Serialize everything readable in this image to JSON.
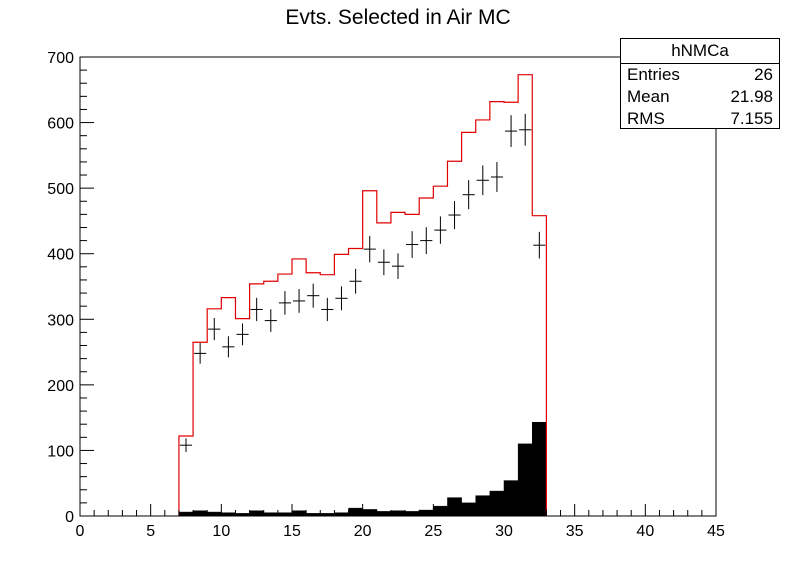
{
  "chart_data": {
    "type": "histogram",
    "title": "Evts. Selected in Air MC",
    "xlim": [
      0,
      45
    ],
    "ylim": [
      0,
      700
    ],
    "x_ticks": [
      0,
      5,
      10,
      15,
      20,
      25,
      30,
      35,
      40,
      45
    ],
    "y_ticks": [
      0,
      100,
      200,
      300,
      400,
      500,
      600,
      700
    ],
    "bin_width": 1,
    "bin_low_edges": [
      7,
      8,
      9,
      10,
      11,
      12,
      13,
      14,
      15,
      16,
      17,
      18,
      19,
      20,
      21,
      22,
      23,
      24,
      25,
      26,
      27,
      28,
      29,
      30,
      31,
      32
    ],
    "series": [
      {
        "style": "red-line-histogram",
        "values": [
          122,
          265,
          316,
          333,
          301,
          354,
          358,
          369,
          392,
          371,
          368,
          399,
          408,
          496,
          447,
          463,
          460,
          485,
          503,
          541,
          585,
          604,
          632,
          631,
          673,
          458
        ]
      },
      {
        "style": "black-markers-with-errors",
        "values": [
          108,
          248,
          285,
          258,
          277,
          315,
          298,
          325,
          328,
          336,
          315,
          332,
          358,
          407,
          387,
          381,
          414,
          420,
          436,
          459,
          490,
          512,
          517,
          587,
          589,
          413
        ]
      },
      {
        "style": "black-filled-histogram",
        "values": [
          6,
          8,
          6,
          5,
          4,
          8,
          5,
          5,
          8,
          4,
          4,
          5,
          12,
          10,
          7,
          8,
          7,
          9,
          15,
          28,
          20,
          31,
          38,
          54,
          110,
          143
        ]
      }
    ],
    "stats_box": {
      "name": "hNMCa",
      "rows": [
        {
          "label": "Entries",
          "value": "26"
        },
        {
          "label": "Mean",
          "value": "21.98"
        },
        {
          "label": "RMS",
          "value": "7.155"
        }
      ]
    }
  }
}
